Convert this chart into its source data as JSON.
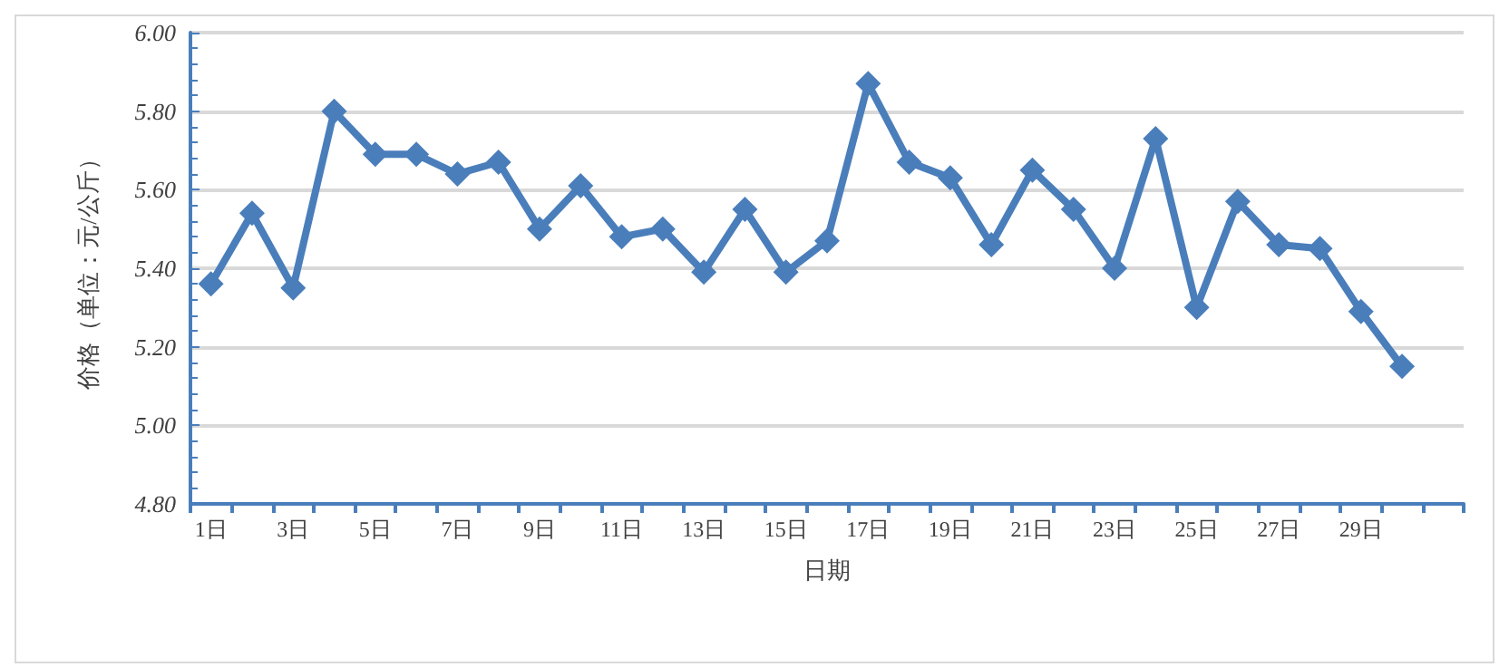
{
  "chart_data": {
    "type": "line",
    "xlabel": "日期",
    "ylabel": "价格（单位：元/公斤）",
    "categories": [
      "1日",
      null,
      "3日",
      null,
      "5日",
      null,
      "7日",
      null,
      "9日",
      null,
      "11日",
      null,
      "13日",
      null,
      "15日",
      null,
      "17日",
      null,
      "19日",
      null,
      "21日",
      null,
      "23日",
      null,
      "25日",
      null,
      "27日",
      null,
      "29日",
      null,
      null
    ],
    "series": [
      {
        "color": "#4a7ebb",
        "values": [
          5.36,
          5.54,
          5.35,
          5.8,
          5.69,
          5.69,
          5.64,
          5.67,
          5.5,
          5.61,
          5.48,
          5.5,
          5.39,
          5.55,
          5.39,
          5.47,
          5.87,
          5.67,
          5.63,
          5.46,
          5.65,
          5.55,
          5.4,
          5.73,
          5.3,
          5.57,
          5.46,
          5.45,
          5.29,
          5.15,
          null
        ]
      }
    ],
    "ylim": [
      4.8,
      6.0
    ],
    "yticks": [
      {
        "value": 4.8,
        "label": "4.80"
      },
      {
        "value": 5.0,
        "label": "5.00"
      },
      {
        "value": 5.2,
        "label": "5.20"
      },
      {
        "value": 5.4,
        "label": "5.40"
      },
      {
        "value": 5.6,
        "label": "5.60"
      },
      {
        "value": 5.8,
        "label": "5.80"
      },
      {
        "value": 6.0,
        "label": "6.00"
      }
    ],
    "grid": "y",
    "marker": "diamond",
    "line_style": "solid"
  }
}
